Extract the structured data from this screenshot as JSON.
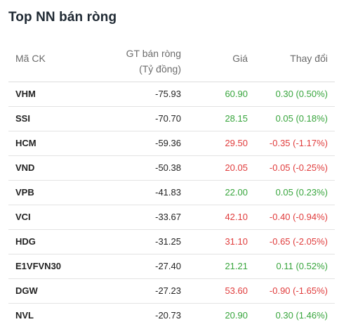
{
  "widget": {
    "title": "Top NN bán ròng",
    "headers": {
      "code": "Mã CK",
      "value_line1": "GT bán ròng",
      "value_line2": "(Tỷ đồng)",
      "price": "Giá",
      "change": "Thay đổi"
    },
    "colors": {
      "up": "#37a53c",
      "down": "#e03c3c"
    },
    "rows": [
      {
        "code": "VHM",
        "value": "-75.93",
        "price": "60.90",
        "change": "0.30 (0.50%)",
        "direction": "up"
      },
      {
        "code": "SSI",
        "value": "-70.70",
        "price": "28.15",
        "change": "0.05 (0.18%)",
        "direction": "up"
      },
      {
        "code": "HCM",
        "value": "-59.36",
        "price": "29.50",
        "change": "-0.35 (-1.17%)",
        "direction": "down"
      },
      {
        "code": "VND",
        "value": "-50.38",
        "price": "20.05",
        "change": "-0.05 (-0.25%)",
        "direction": "down"
      },
      {
        "code": "VPB",
        "value": "-41.83",
        "price": "22.00",
        "change": "0.05 (0.23%)",
        "direction": "up"
      },
      {
        "code": "VCI",
        "value": "-33.67",
        "price": "42.10",
        "change": "-0.40 (-0.94%)",
        "direction": "down"
      },
      {
        "code": "HDG",
        "value": "-31.25",
        "price": "31.10",
        "change": "-0.65 (-2.05%)",
        "direction": "down"
      },
      {
        "code": "E1VFVN30",
        "value": "-27.40",
        "price": "21.21",
        "change": "0.11 (0.52%)",
        "direction": "up"
      },
      {
        "code": "DGW",
        "value": "-27.23",
        "price": "53.60",
        "change": "-0.90 (-1.65%)",
        "direction": "down"
      },
      {
        "code": "NVL",
        "value": "-20.73",
        "price": "20.90",
        "change": "0.30 (1.46%)",
        "direction": "up"
      }
    ]
  }
}
